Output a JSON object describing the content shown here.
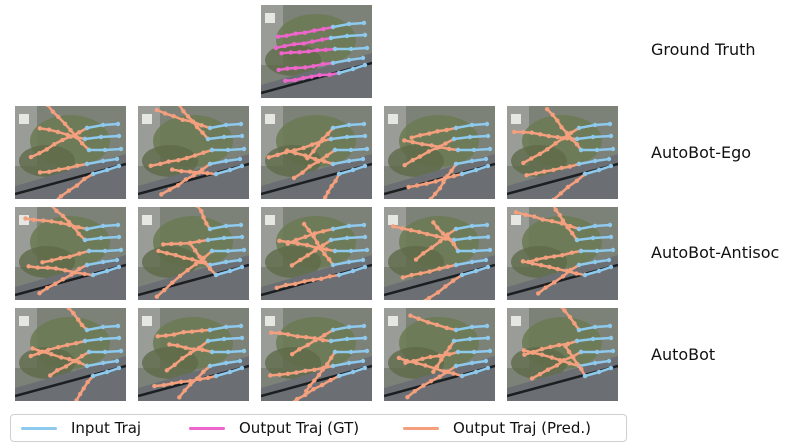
{
  "rows": [
    {
      "label": "Ground Truth"
    },
    {
      "label": "AutoBot-Ego"
    },
    {
      "label": "AutoBot-Antisoc"
    },
    {
      "label": "AutoBot"
    }
  ],
  "legend": [
    {
      "label": "Input Traj",
      "color": "#8ec9ee"
    },
    {
      "label": "Output Traj (GT)",
      "color": "#ee66cc"
    },
    {
      "label": "Output Traj (Pred.)",
      "color": "#f4a07e"
    }
  ],
  "colors": {
    "input": "#8ec9ee",
    "ground_truth": "#ee66cc",
    "prediction": "#f4a07e",
    "road": "#6b6f73",
    "vegetation": "#6b7a52"
  }
}
